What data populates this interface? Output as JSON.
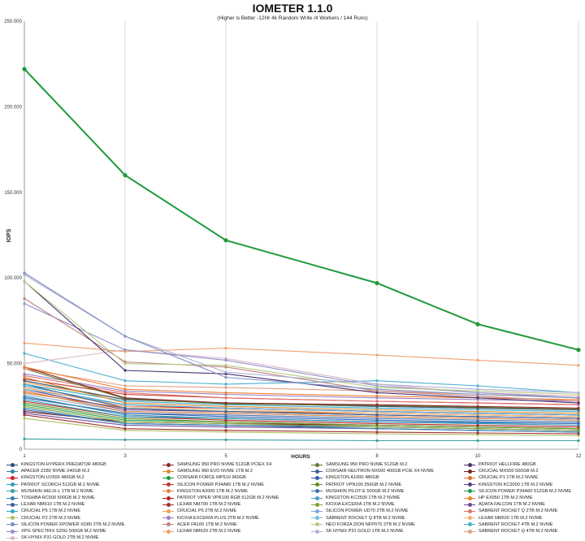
{
  "chart_data": {
    "type": "line",
    "title": "IOMETER 1.1.0",
    "subtitle": "(Higher is Better -12Hr 4k Random Write /4 Workers / 144 Runs)",
    "xlabel": "HOURS",
    "ylabel": "IOPS",
    "x": [
      1,
      3,
      5,
      8,
      10,
      12
    ],
    "ylim": [
      0,
      250000
    ],
    "yticks": [
      "0",
      "50.000",
      "100.000",
      "150.000",
      "200.000",
      "250.000"
    ],
    "grid": "vertical",
    "legend_position": "bottom",
    "series": [
      {
        "name": "KINGSTON HYPERX PREDATOR 480GB",
        "color": "#2e4d7a",
        "values": [
          40000,
          29000,
          27000,
          25000,
          24000,
          23000
        ]
      },
      {
        "name": "SAMSUNG 950 PRO NVME 512GB PCIEX X4",
        "color": "#8b2a2a",
        "values": [
          48000,
          30000,
          27000,
          26000,
          25000,
          24000
        ]
      },
      {
        "name": "SAMSUNG 950 PRO NVME 512GB M.2",
        "color": "#5e7a2e",
        "values": [
          47000,
          29500,
          26500,
          25500,
          24500,
          23500
        ]
      },
      {
        "name": "PATRIOT HELLFIRE 480GB",
        "color": "#4a2e6e",
        "values": [
          98000,
          46000,
          44000,
          33000,
          30000,
          27000
        ]
      },
      {
        "name": "APACER Z280 NVME 240GB M.2",
        "color": "#2e86a8",
        "values": [
          31000,
          20000,
          18000,
          16000,
          15000,
          14000
        ]
      },
      {
        "name": "SAMSUNG 960 EVO NVME 1TB M.2",
        "color": "#d98a2e",
        "values": [
          42000,
          27000,
          25000,
          23000,
          22000,
          21000
        ]
      },
      {
        "name": "CORSAIR NEUTRON NX500 400GB PCIE X4 NVME",
        "color": "#3a5f8f",
        "values": [
          38000,
          24000,
          22000,
          20000,
          19000,
          18000
        ]
      },
      {
        "name": "CRUCIAL MX500 500GB M.2",
        "color": "#7a2020",
        "values": [
          22000,
          16000,
          15000,
          14000,
          13000,
          12000
        ]
      },
      {
        "name": "KINGSTON UV500 480GB M.2",
        "color": "#d02020",
        "values": [
          36000,
          25000,
          24000,
          22000,
          21000,
          20000
        ]
      },
      {
        "name": "CORSAIR FORCE MP510 960GB",
        "color": "#1f9a3a",
        "values": [
          222000,
          160000,
          122000,
          97000,
          73000,
          58000
        ]
      },
      {
        "name": "KINGSTON A1000 480GB",
        "color": "#2e5faf",
        "values": [
          30000,
          21000,
          19000,
          17000,
          16000,
          15000
        ]
      },
      {
        "name": "CRUCIAL P1 1TB M.2 NVME",
        "color": "#e07020",
        "values": [
          33000,
          24000,
          22000,
          21000,
          20000,
          19000
        ]
      },
      {
        "name": "PATRIOT SCORCH 512GB M.2 NVME",
        "color": "#2aa0c0",
        "values": [
          29000,
          19000,
          18000,
          16000,
          15500,
          15000
        ]
      },
      {
        "name": "SILICON POWER P34A80 1TB M.2 NVME",
        "color": "#c0392b",
        "values": [
          41000,
          32000,
          30000,
          28000,
          27000,
          26000
        ]
      },
      {
        "name": "PATRIOT VPN100 256GB M.2 NVME",
        "color": "#6b8e23",
        "values": [
          27000,
          18000,
          16000,
          14000,
          13000,
          12000
        ]
      },
      {
        "name": "KINGSTON KC2000 1TB M.2 NVME",
        "color": "#5b3d8a",
        "values": [
          35000,
          23000,
          22000,
          20000,
          19000,
          18000
        ]
      },
      {
        "name": "MUSHKIN HELIX-L 1TB M.2 NVME",
        "color": "#3aa0a0",
        "values": [
          6000,
          5500,
          5500,
          5000,
          5000,
          5000
        ]
      },
      {
        "name": "KINGSTON A2000 1TB M.2 NVME",
        "color": "#e08040",
        "values": [
          34000,
          22000,
          21000,
          19000,
          18000,
          17000
        ]
      },
      {
        "name": "MUSHKIN PILOT-E 500GB M.2 NVME",
        "color": "#3f6fb0",
        "values": [
          30000,
          21000,
          20000,
          18000,
          17000,
          16000
        ]
      },
      {
        "name": "SILICON POWER P34A60 512GB M.2 NVME",
        "color": "#20a050",
        "values": [
          26000,
          17000,
          16000,
          14000,
          13000,
          12000
        ]
      },
      {
        "name": "TOSHIBA RC500 500GB M.2 NVME",
        "color": "#2f7fb0",
        "values": [
          24000,
          15000,
          14000,
          12000,
          11000,
          10000
        ]
      },
      {
        "name": "PATRIOT VIPER VPR100 RGB 512GB M.2 NVME",
        "color": "#b22222",
        "values": [
          28000,
          19000,
          17000,
          15000,
          14000,
          13000
        ]
      },
      {
        "name": "KINGSTON KC2500 1TB M.2 NVME",
        "color": "#4aa0d0",
        "values": [
          37000,
          26000,
          24000,
          22000,
          21000,
          20000
        ]
      },
      {
        "name": "HP EX950 1TB M.2 NVME",
        "color": "#f08030",
        "values": [
          48000,
          35000,
          33000,
          31000,
          30000,
          29000
        ]
      },
      {
        "name": "LEXAR NM610 1TB M.2 NVME",
        "color": "#4060a0",
        "values": [
          23000,
          15000,
          14000,
          13000,
          12000,
          11000
        ]
      },
      {
        "name": "LEXAR NM700 1TB M.2 NVME",
        "color": "#a03030",
        "values": [
          20000,
          12000,
          11000,
          10000,
          9500,
          9000
        ]
      },
      {
        "name": "KIOXIA EXCERIA 1TB M.2 NVME",
        "color": "#80a030",
        "values": [
          25000,
          16000,
          15000,
          13000,
          12000,
          11000
        ]
      },
      {
        "name": "ADATA FALCON 1TB M.2 NVME",
        "color": "#6a4a9a",
        "values": [
          21000,
          14000,
          13000,
          12000,
          11000,
          10000
        ]
      },
      {
        "name": "CRUCIAL P5 1TB M.2 NVME",
        "color": "#30a8c8",
        "values": [
          38000,
          28000,
          26000,
          24000,
          23000,
          22000
        ]
      },
      {
        "name": "CRUCIAL P5 2TB M.2 NVME",
        "color": "#f0a050",
        "values": [
          39000,
          29000,
          27000,
          25000,
          24000,
          23000
        ]
      },
      {
        "name": "SILICON POWER UD70 2TB M.2 NVME",
        "color": "#7fa8d8",
        "values": [
          32000,
          22000,
          21000,
          19000,
          18000,
          17000
        ]
      },
      {
        "name": "SABRENT ROCKET Q 2TB M.2 NVME",
        "color": "#e07070",
        "values": [
          43000,
          33000,
          30000,
          28000,
          27000,
          26000
        ]
      },
      {
        "name": "CRUCIAL P2 2TB M.2 NVME",
        "color": "#b0c060",
        "values": [
          18000,
          11000,
          10000,
          9000,
          8500,
          8000
        ]
      },
      {
        "name": "KIOXIA EXCERIA PLUS 2TB M.2 NVME",
        "color": "#9a80c0",
        "values": [
          44000,
          34000,
          32000,
          30000,
          29000,
          28000
        ]
      },
      {
        "name": "SABRENT ROCKET Q 8TB M.2 NVME",
        "color": "#70c0d8",
        "values": [
          35000,
          26000,
          24000,
          22000,
          21000,
          20000
        ]
      },
      {
        "name": "LEXAR NM620 1TB M.2 NVME",
        "color": "#f0b070",
        "values": [
          36000,
          25000,
          23000,
          21000,
          20000,
          19000
        ]
      },
      {
        "name": "SILICON POWER XPOWER XD80 2TB M.2 NVME",
        "color": "#8090c0",
        "values": [
          103000,
          66000,
          42000,
          35000,
          32000,
          30000
        ]
      },
      {
        "name": "ACER FA100 1TB M.2 NVME",
        "color": "#c08080",
        "values": [
          88000,
          51000,
          48000,
          34000,
          31000,
          28000
        ]
      },
      {
        "name": "NEO FORZA ZION NFP075 2TB M.2 NVME",
        "color": "#b8c880",
        "values": [
          98000,
          50000,
          49000,
          36000,
          34000,
          32000
        ]
      },
      {
        "name": "SABRENT ROCKET 4TB M.2 NVME",
        "color": "#4ab0d0",
        "values": [
          56000,
          40000,
          38000,
          40000,
          37000,
          33000
        ]
      },
      {
        "name": "XPG SPECTRIX S20G 500GB M.2 NVME",
        "color": "#9090c8",
        "values": [
          85000,
          58000,
          52000,
          37000,
          33000,
          30000
        ]
      },
      {
        "name": "LEXAR NM620 2TB M.2 NVME",
        "color": "#f0a070",
        "values": [
          62000,
          57000,
          59000,
          55000,
          52000,
          49000
        ]
      },
      {
        "name": "SK HYNIX P31 GOLD 1TB M.2 NVME",
        "color": "#b0b0d8",
        "values": [
          102000,
          66000,
          45000,
          38000,
          35000,
          33000
        ]
      },
      {
        "name": "SABRENT ROCKET Q 4TB M.2 NVME",
        "color": "#e0a080",
        "values": [
          47000,
          37000,
          36000,
          34000,
          32000,
          30000
        ]
      },
      {
        "name": "SK HYNIX P31 GOLD 2TB M.2 NVME",
        "color": "#d8b8c8",
        "values": [
          50000,
          58000,
          53000,
          38000,
          33000,
          31000
        ]
      }
    ]
  }
}
